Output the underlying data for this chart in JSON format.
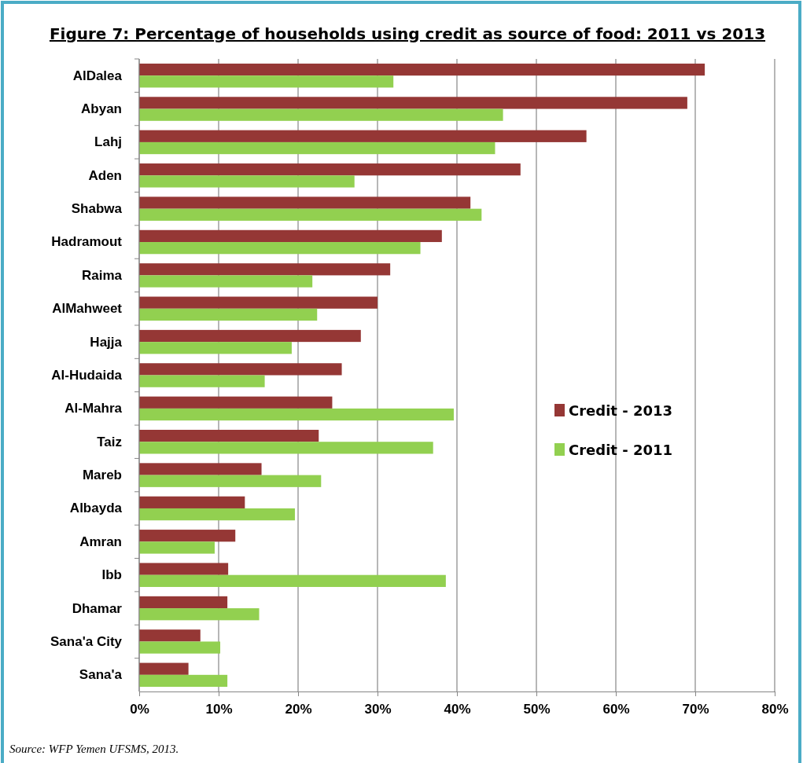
{
  "chart_data": {
    "type": "bar",
    "orientation": "horizontal",
    "title": "Figure 7: Percentage of households using credit as source of food: 2011 vs 2013",
    "categories": [
      "AlDalea",
      "Abyan",
      "Lahj",
      "Aden",
      "Shabwa",
      "Hadramout",
      "Raima",
      "AlMahweet",
      "Hajja",
      "Al-Hudaida",
      "Al-Mahra",
      "Taiz",
      "Mareb",
      "Albayda",
      "Amran",
      "Ibb",
      "Dhamar",
      "Sana'a City",
      "Sana'a"
    ],
    "series": [
      {
        "name": "Credit - 2013",
        "color": "#953735",
        "values": [
          71.2,
          69.0,
          56.3,
          48.0,
          41.7,
          38.1,
          31.6,
          30.0,
          27.9,
          25.5,
          24.3,
          22.6,
          15.4,
          13.3,
          12.1,
          11.2,
          11.1,
          7.7,
          6.2
        ]
      },
      {
        "name": "Credit - 2011",
        "color": "#92d050",
        "values": [
          32.0,
          45.8,
          44.8,
          27.1,
          43.1,
          35.4,
          21.8,
          22.4,
          19.2,
          15.8,
          39.6,
          37.0,
          22.9,
          19.6,
          9.5,
          38.6,
          15.1,
          10.2,
          11.1
        ]
      }
    ],
    "xlim": [
      0,
      80
    ],
    "xticks": [
      {
        "value": 0,
        "label": "0%"
      },
      {
        "value": 10,
        "label": "10%"
      },
      {
        "value": 20,
        "label": "20%"
      },
      {
        "value": 30,
        "label": "30%"
      },
      {
        "value": 40,
        "label": "40%"
      },
      {
        "value": 50,
        "label": "50%"
      },
      {
        "value": 60,
        "label": "60%"
      },
      {
        "value": 70,
        "label": "70%"
      },
      {
        "value": 80,
        "label": "80%"
      }
    ],
    "grid": "x",
    "legend": "right",
    "annotations": [
      "Source: WFP Yemen UFSMS, 2013."
    ]
  }
}
